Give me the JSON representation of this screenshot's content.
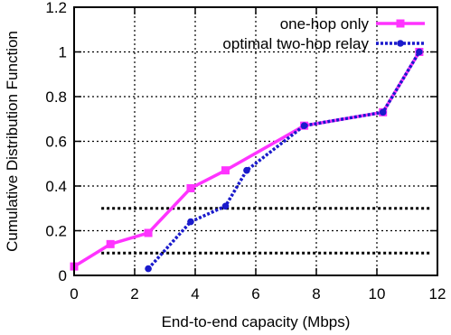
{
  "chart_data": {
    "type": "line",
    "xlabel": "End-to-end capacity (Mbps)",
    "ylabel": "Cumulative Distribution Function",
    "xlim": [
      0,
      12
    ],
    "ylim": [
      0,
      1.2
    ],
    "xticks": [
      "0",
      "2",
      "4",
      "6",
      "8",
      "10",
      "12"
    ],
    "yticks": [
      "0",
      "0.2",
      "0.4",
      "0.6",
      "0.8",
      "1",
      "1.2"
    ],
    "xtick_values": [
      0,
      2,
      4,
      6,
      8,
      10,
      12
    ],
    "ytick_values": [
      0,
      0.2,
      0.4,
      0.6,
      0.8,
      1.0,
      1.2
    ],
    "grid": true,
    "legend_position": "top-right",
    "reference_lines": [
      0.3,
      0.1
    ],
    "series": [
      {
        "name": "one-hop only",
        "color": "#ff33ff",
        "marker": "square",
        "line_style": "solid",
        "x": [
          0,
          1.2,
          2.45,
          3.85,
          5.0,
          7.6,
          10.2,
          11.4
        ],
        "y": [
          0.04,
          0.14,
          0.19,
          0.39,
          0.47,
          0.67,
          0.73,
          1.0
        ]
      },
      {
        "name": "optimal two-hop relay",
        "color": "#1a1acc",
        "marker": "circle",
        "line_style": "dotted",
        "x": [
          2.45,
          3.85,
          5.0,
          5.7,
          7.6,
          10.2,
          11.4
        ],
        "y": [
          0.03,
          0.24,
          0.31,
          0.47,
          0.67,
          0.73,
          1.0
        ]
      }
    ]
  }
}
